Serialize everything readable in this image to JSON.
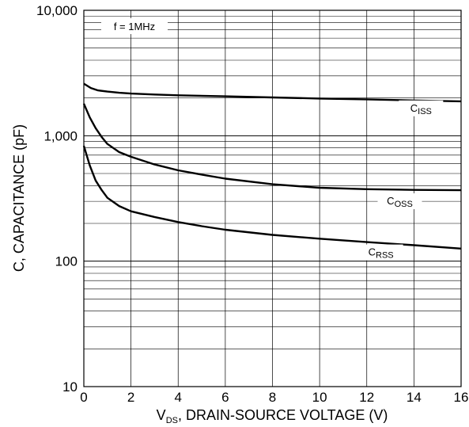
{
  "chart_data": {
    "type": "line",
    "xlabel_main": "V",
    "xlabel_sub": "DS",
    "xlabel_rest": ", DRAIN-SOURCE VOLTAGE (V)",
    "ylabel": "C, CAPACITANCE (pF)",
    "xlim": [
      0,
      16
    ],
    "ylim": [
      10,
      10000
    ],
    "yscale": "log",
    "grid": true,
    "x_ticks": [
      0,
      2,
      4,
      6,
      8,
      10,
      12,
      14,
      16
    ],
    "x_tick_labels": [
      "0",
      "2",
      "4",
      "6",
      "8",
      "10",
      "12",
      "14",
      "16"
    ],
    "y_ticks": [
      10,
      100,
      1000,
      10000
    ],
    "y_tick_labels": [
      "10",
      "100",
      "1,000",
      "10,000"
    ],
    "annotation": "f = 1MHz",
    "series": [
      {
        "name": "C_ISS",
        "label_main": "C",
        "label_sub": "ISS",
        "x": [
          0,
          0.3,
          0.6,
          1,
          1.5,
          2,
          3,
          4,
          6,
          8,
          10,
          12,
          14,
          16
        ],
        "y": [
          2600,
          2400,
          2300,
          2250,
          2200,
          2170,
          2130,
          2100,
          2060,
          2020,
          1980,
          1950,
          1910,
          1880
        ]
      },
      {
        "name": "C_OSS",
        "label_main": "C",
        "label_sub": "OSS",
        "x": [
          0,
          0.25,
          0.5,
          0.75,
          1,
          1.5,
          2,
          3,
          4,
          5,
          6,
          8,
          10,
          12,
          14,
          16
        ],
        "y": [
          1800,
          1400,
          1150,
          980,
          860,
          740,
          680,
          590,
          530,
          490,
          455,
          410,
          385,
          375,
          370,
          368
        ]
      },
      {
        "name": "C_RSS",
        "label_main": "C",
        "label_sub": "RSS",
        "x": [
          0,
          0.25,
          0.5,
          0.75,
          1,
          1.5,
          2,
          3,
          4,
          5,
          6,
          8,
          10,
          12,
          14,
          16
        ],
        "y": [
          830,
          580,
          440,
          370,
          320,
          275,
          250,
          225,
          205,
          190,
          178,
          162,
          151,
          142,
          134,
          126
        ]
      }
    ]
  }
}
